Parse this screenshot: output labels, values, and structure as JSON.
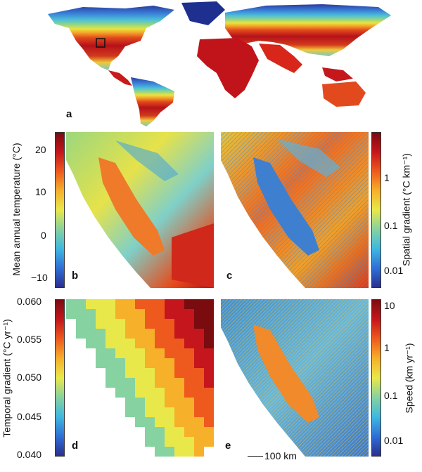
{
  "panels": {
    "a": "a",
    "b": "b",
    "c": "c",
    "d": "d",
    "e": "e"
  },
  "scale_bar": "100 km",
  "colorbars": {
    "temperature": {
      "label": "Mean annual temperature (°C)",
      "ticks": [
        "20",
        "10",
        "0",
        "−10"
      ],
      "range": [
        -13,
        24
      ]
    },
    "spatial_gradient": {
      "label": "Spatial gradient (°C km⁻¹)",
      "ticks": [
        "1",
        "0.1",
        "0.01"
      ],
      "scale": "log"
    },
    "temporal_gradient": {
      "label": "Temporal gradient (°C yr⁻¹)",
      "ticks": [
        "0.060",
        "0.055",
        "0.050",
        "0.045",
        "0.040"
      ],
      "range": [
        0.04,
        0.06
      ]
    },
    "speed": {
      "label": "Speed (km yr⁻¹)",
      "ticks": [
        "10",
        "1",
        "0.1",
        "0.01"
      ],
      "scale": "log"
    }
  },
  "colors": {
    "ramp": [
      "#2b2f8f",
      "#2f6fd6",
      "#3fb8e0",
      "#86d2a0",
      "#e8e84a",
      "#f6b02a",
      "#ee5a1e",
      "#c4161c",
      "#7a0c10"
    ],
    "ocean": "#ffffff",
    "inset_box": "#111111"
  }
}
